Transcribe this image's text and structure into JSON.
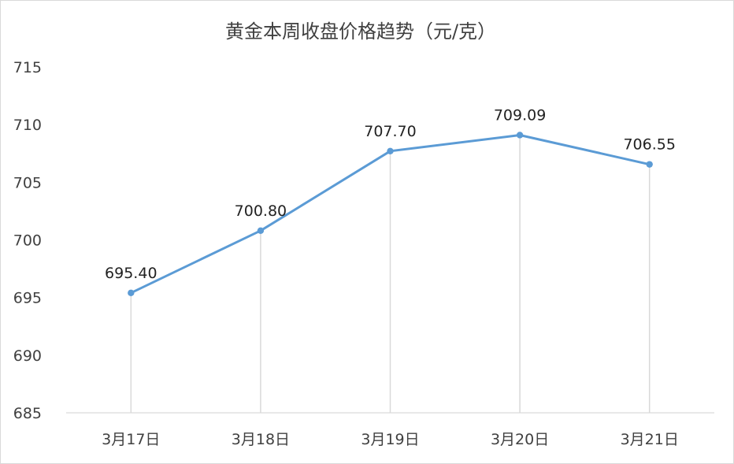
{
  "chart_data": {
    "type": "line",
    "title": "黄金本周收盘价格趋势（元/克）",
    "categories": [
      "3月17日",
      "3月18日",
      "3月19日",
      "3月20日",
      "3月21日"
    ],
    "series": [
      {
        "values": [
          695.4,
          700.8,
          707.7,
          709.09,
          706.55
        ]
      }
    ],
    "data_labels": [
      "695.40",
      "700.80",
      "707.70",
      "709.09",
      "706.55"
    ],
    "y_ticks": [
      "685",
      "690",
      "695",
      "700",
      "705",
      "710",
      "715"
    ],
    "ylim": [
      685,
      715
    ],
    "xlabel": "",
    "ylabel": "",
    "grid": false,
    "drop_lines": true,
    "legend": "none",
    "colors": {
      "line": "#5b9bd5",
      "drop_line": "#d9d9d9",
      "axis": "#d9d9d9",
      "text": "#404040"
    }
  }
}
